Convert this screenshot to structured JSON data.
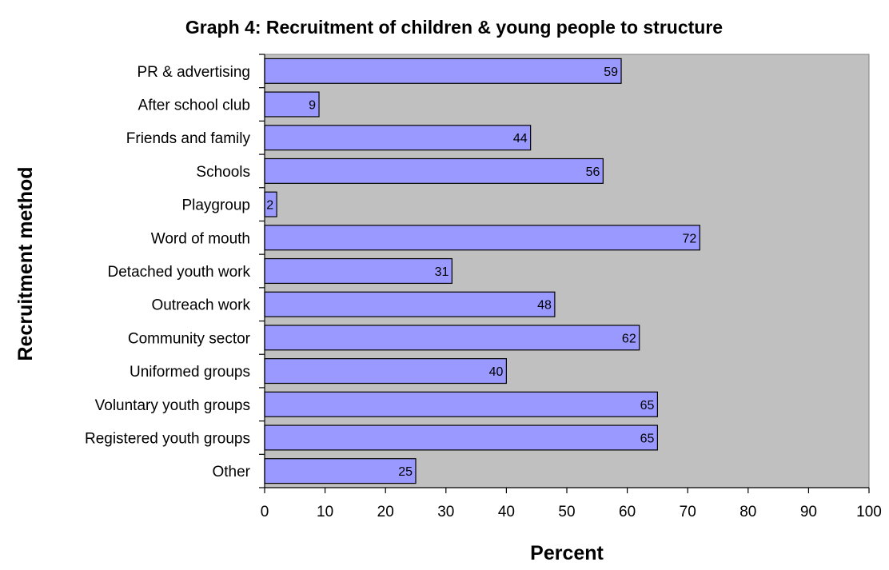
{
  "chart_data": {
    "type": "bar",
    "orientation": "horizontal",
    "title": "Graph 4: Recruitment of children & young people to structure",
    "xlabel": "Percent",
    "ylabel": "Recruitment method",
    "xlim": [
      0,
      100
    ],
    "xticks": [
      0,
      10,
      20,
      30,
      40,
      50,
      60,
      70,
      80,
      90,
      100
    ],
    "grid": false,
    "legend": "none",
    "categories": [
      "PR & advertising",
      "After school club",
      "Friends and family",
      "Schools",
      "Playgroup",
      "Word of mouth",
      "Detached youth work",
      "Outreach work",
      "Community sector",
      "Uniformed groups",
      "Voluntary youth groups",
      "Registered youth groups",
      "Other"
    ],
    "values": [
      59,
      9,
      44,
      56,
      2,
      72,
      31,
      48,
      62,
      40,
      65,
      65,
      25
    ],
    "colors": {
      "bar_fill": "#9999ff",
      "bar_stroke": "#000000",
      "plot_background": "#c0c0c0"
    }
  }
}
